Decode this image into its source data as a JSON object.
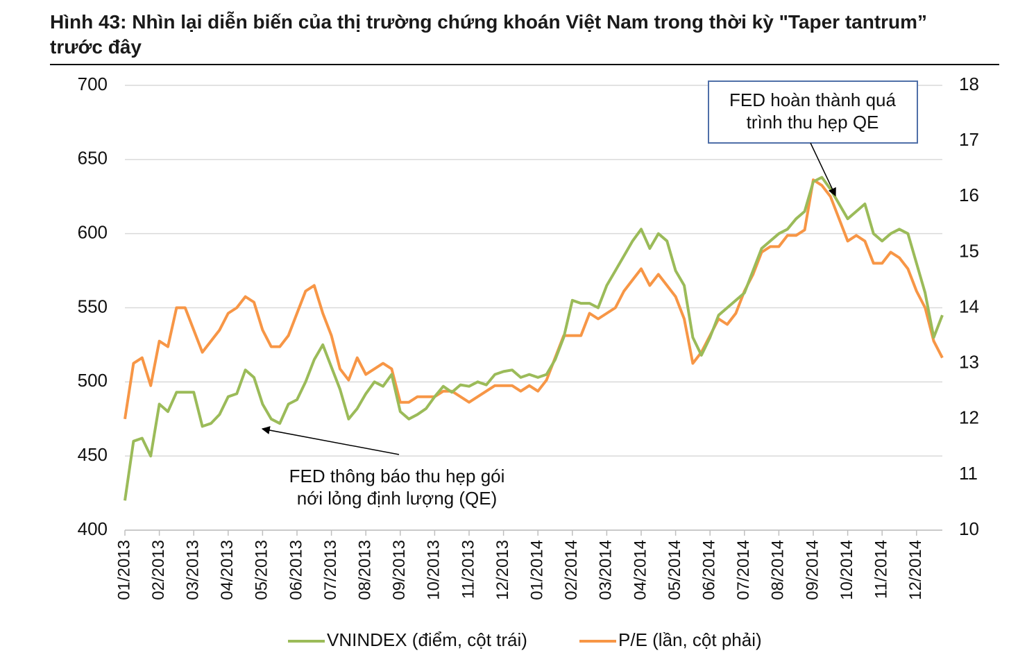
{
  "chart_data": {
    "type": "line",
    "title": "Hình 43: Nhìn lại diễn biến của thị trường chứng khoán Việt Nam trong thời kỳ \"Taper tantrum” trước đây",
    "categories": [
      "01/2013",
      null,
      null,
      null,
      "02/2013",
      null,
      null,
      null,
      "03/2013",
      null,
      null,
      null,
      "04/2013",
      null,
      null,
      null,
      "05/2013",
      null,
      null,
      null,
      "06/2013",
      null,
      null,
      null,
      "07/2013",
      null,
      null,
      null,
      "08/2013",
      null,
      null,
      null,
      "09/2013",
      null,
      null,
      null,
      "10/2013",
      null,
      null,
      null,
      "11/2013",
      null,
      null,
      null,
      "12/2013",
      null,
      null,
      null,
      "01/2014",
      null,
      null,
      null,
      "02/2014",
      null,
      null,
      null,
      "03/2014",
      null,
      null,
      null,
      "04/2014",
      null,
      null,
      null,
      "05/2014",
      null,
      null,
      null,
      "06/2014",
      null,
      null,
      null,
      "07/2014",
      null,
      null,
      null,
      "08/2014",
      null,
      null,
      null,
      "09/2014",
      null,
      null,
      null,
      "10/2014",
      null,
      null,
      null,
      "11/2014",
      null,
      null,
      null,
      "12/2014",
      null,
      null,
      null
    ],
    "series": [
      {
        "name": "VNINDEX (điểm, cột trái)",
        "color": "#9bbb59",
        "values": [
          420,
          460,
          462,
          450,
          485,
          480,
          493,
          493,
          493,
          470,
          472,
          478,
          490,
          492,
          508,
          503,
          485,
          475,
          472,
          485,
          488,
          500,
          515,
          525,
          510,
          495,
          475,
          482,
          492,
          500,
          497,
          505,
          480,
          475,
          478,
          482,
          490,
          497,
          493,
          498,
          497,
          500,
          498,
          505,
          507,
          508,
          503,
          505,
          503,
          505,
          515,
          530,
          555,
          553,
          553,
          550,
          565,
          575,
          585,
          595,
          603,
          590,
          600,
          595,
          575,
          565,
          530,
          518,
          530,
          545,
          550,
          555,
          560,
          575,
          590,
          595,
          600,
          603,
          610,
          615,
          635,
          638,
          630,
          620,
          610,
          615,
          620,
          600,
          595,
          600,
          603,
          600,
          580,
          560,
          530,
          545
        ]
      },
      {
        "name": "P/E (lần, cột phải)",
        "color": "#f79646",
        "axis": "y2",
        "values": [
          12.0,
          13.0,
          13.1,
          12.6,
          13.4,
          13.3,
          14.0,
          14.0,
          13.6,
          13.2,
          13.4,
          13.6,
          13.9,
          14.0,
          14.2,
          14.1,
          13.6,
          13.3,
          13.3,
          13.5,
          13.9,
          14.3,
          14.4,
          13.9,
          13.5,
          12.9,
          12.7,
          13.1,
          12.8,
          12.9,
          13.0,
          12.9,
          12.3,
          12.3,
          12.4,
          12.4,
          12.4,
          12.5,
          12.5,
          12.4,
          12.3,
          12.4,
          12.5,
          12.6,
          12.6,
          12.6,
          12.5,
          12.6,
          12.5,
          12.7,
          13.1,
          13.5,
          13.5,
          13.5,
          13.9,
          13.8,
          13.9,
          14.0,
          14.3,
          14.5,
          14.7,
          14.4,
          14.6,
          14.4,
          14.2,
          13.8,
          13.0,
          13.2,
          13.5,
          13.8,
          13.7,
          13.9,
          14.3,
          14.6,
          15.0,
          15.1,
          15.1,
          15.3,
          15.3,
          15.4,
          16.3,
          16.2,
          16.0,
          15.6,
          15.2,
          15.3,
          15.2,
          14.8,
          14.8,
          15.0,
          14.9,
          14.7,
          14.3,
          14.0,
          13.4,
          13.1
        ]
      }
    ],
    "ylim": [
      400,
      700
    ],
    "yticks": [
      400,
      450,
      500,
      550,
      600,
      650,
      700
    ],
    "y2lim": [
      10,
      18
    ],
    "y2ticks": [
      10,
      11,
      12,
      13,
      14,
      15,
      16,
      17,
      18
    ],
    "grid": true,
    "legend": "bottom",
    "annotations": [
      {
        "lines": [
          "FED thông báo thu hẹp gói",
          "nới lỏng định lượng (QE)"
        ]
      },
      {
        "lines": [
          "FED hoàn thành quá",
          "trình thu hẹp QE"
        ]
      }
    ]
  }
}
